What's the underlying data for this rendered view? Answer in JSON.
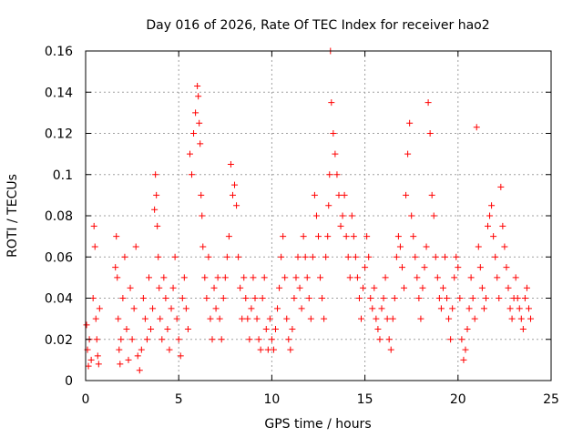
{
  "chart_data": {
    "type": "scatter",
    "title": "Day 016 of 2026, Rate Of TEC Index for receiver hao2",
    "xlabel": "GPS time / hours",
    "ylabel": "ROTI / TECUs",
    "xlim": [
      0,
      25
    ],
    "ylim": [
      0,
      0.16
    ],
    "xticks": [
      "0",
      "5",
      "10",
      "15",
      "20",
      "25"
    ],
    "yticks": [
      "0",
      "0.02",
      "0.04",
      "0.06",
      "0.08",
      "0.1",
      "0.12",
      "0.14",
      "0.16"
    ],
    "grid": true,
    "marker": "+",
    "color": "#ff0000",
    "series": [
      {
        "x": [
          0.05,
          0.1,
          0.15,
          0.2,
          0.3,
          0.4,
          0.45,
          0.5,
          0.55,
          0.6,
          0.65,
          0.7,
          0.75,
          1.6,
          1.65,
          1.7,
          1.75,
          1.8,
          1.85,
          1.9,
          2.0,
          2.1,
          2.2,
          2.3,
          2.4,
          2.5,
          2.6,
          2.7,
          2.8,
          2.9,
          3.0,
          3.1,
          3.2,
          3.3,
          3.4,
          3.5,
          3.6,
          3.7,
          3.75,
          3.8,
          3.85,
          3.9,
          3.95,
          4.0,
          4.1,
          4.2,
          4.3,
          4.4,
          4.5,
          4.6,
          4.7,
          4.8,
          4.9,
          5.0,
          5.1,
          5.2,
          5.3,
          5.4,
          5.5,
          5.6,
          5.7,
          5.8,
          5.9,
          6.0,
          6.05,
          6.1,
          6.15,
          6.2,
          6.25,
          6.3,
          6.4,
          6.5,
          6.6,
          6.7,
          6.8,
          6.9,
          7.0,
          7.1,
          7.2,
          7.3,
          7.4,
          7.5,
          7.6,
          7.7,
          7.8,
          7.9,
          8.0,
          8.1,
          8.2,
          8.3,
          8.4,
          8.5,
          8.6,
          8.7,
          8.8,
          8.9,
          9.0,
          9.1,
          9.2,
          9.3,
          9.4,
          9.5,
          9.6,
          9.7,
          9.8,
          9.9,
          10.0,
          10.1,
          10.2,
          10.3,
          10.4,
          10.5,
          10.6,
          10.7,
          10.8,
          10.9,
          11.0,
          11.1,
          11.2,
          11.3,
          11.4,
          11.5,
          11.6,
          11.7,
          11.8,
          11.9,
          12.0,
          12.1,
          12.2,
          12.3,
          12.4,
          12.5,
          12.6,
          12.7,
          12.8,
          12.9,
          13.0,
          13.05,
          13.1,
          13.15,
          13.2,
          13.3,
          13.4,
          13.5,
          13.6,
          13.7,
          13.8,
          13.9,
          14.0,
          14.1,
          14.2,
          14.3,
          14.4,
          14.5,
          14.6,
          14.7,
          14.8,
          14.9,
          15.0,
          15.1,
          15.2,
          15.3,
          15.4,
          15.5,
          15.6,
          15.7,
          15.8,
          15.9,
          16.0,
          16.1,
          16.2,
          16.3,
          16.4,
          16.5,
          16.6,
          16.7,
          16.8,
          16.9,
          17.0,
          17.1,
          17.2,
          17.3,
          17.4,
          17.5,
          17.6,
          17.7,
          17.8,
          17.9,
          18.0,
          18.1,
          18.2,
          18.3,
          18.4,
          18.5,
          18.6,
          18.7,
          18.8,
          18.9,
          19.0,
          19.1,
          19.2,
          19.3,
          19.4,
          19.5,
          19.6,
          19.7,
          19.8,
          19.9,
          20.0,
          20.1,
          20.2,
          20.3,
          20.4,
          20.5,
          20.6,
          20.7,
          20.8,
          20.9,
          21.0,
          21.1,
          21.2,
          21.3,
          21.4,
          21.5,
          21.6,
          21.7,
          21.8,
          21.9,
          22.0,
          22.1,
          22.2,
          22.3,
          22.4,
          22.5,
          22.6,
          22.7,
          22.8,
          22.9,
          23.0,
          23.1,
          23.2,
          23.3,
          23.4,
          23.5,
          23.6,
          23.7,
          23.8,
          23.9
        ],
        "y": [
          0.027,
          0.015,
          0.007,
          0.02,
          0.01,
          0.04,
          0.075,
          0.065,
          0.03,
          0.02,
          0.012,
          0.008,
          0.035,
          0.055,
          0.07,
          0.05,
          0.03,
          0.015,
          0.008,
          0.02,
          0.04,
          0.06,
          0.025,
          0.01,
          0.045,
          0.02,
          0.035,
          0.065,
          0.012,
          0.005,
          0.015,
          0.04,
          0.03,
          0.02,
          0.05,
          0.025,
          0.035,
          0.083,
          0.1,
          0.09,
          0.075,
          0.06,
          0.045,
          0.03,
          0.02,
          0.05,
          0.04,
          0.025,
          0.015,
          0.035,
          0.045,
          0.06,
          0.03,
          0.02,
          0.012,
          0.04,
          0.05,
          0.035,
          0.025,
          0.11,
          0.1,
          0.12,
          0.13,
          0.143,
          0.138,
          0.125,
          0.115,
          0.09,
          0.08,
          0.065,
          0.05,
          0.04,
          0.06,
          0.03,
          0.02,
          0.045,
          0.035,
          0.05,
          0.03,
          0.02,
          0.04,
          0.05,
          0.06,
          0.07,
          0.105,
          0.09,
          0.095,
          0.085,
          0.06,
          0.045,
          0.03,
          0.05,
          0.04,
          0.03,
          0.02,
          0.035,
          0.05,
          0.04,
          0.03,
          0.02,
          0.015,
          0.04,
          0.05,
          0.025,
          0.015,
          0.03,
          0.02,
          0.015,
          0.025,
          0.035,
          0.045,
          0.06,
          0.07,
          0.05,
          0.03,
          0.02,
          0.015,
          0.025,
          0.04,
          0.05,
          0.06,
          0.045,
          0.035,
          0.07,
          0.06,
          0.05,
          0.04,
          0.03,
          0.06,
          0.09,
          0.08,
          0.07,
          0.05,
          0.04,
          0.03,
          0.06,
          0.07,
          0.085,
          0.1,
          0.16,
          0.135,
          0.12,
          0.11,
          0.1,
          0.09,
          0.075,
          0.08,
          0.09,
          0.07,
          0.06,
          0.05,
          0.08,
          0.07,
          0.06,
          0.05,
          0.04,
          0.03,
          0.045,
          0.055,
          0.07,
          0.06,
          0.04,
          0.035,
          0.045,
          0.03,
          0.025,
          0.02,
          0.035,
          0.04,
          0.05,
          0.03,
          0.02,
          0.015,
          0.03,
          0.04,
          0.06,
          0.07,
          0.065,
          0.055,
          0.045,
          0.09,
          0.11,
          0.125,
          0.08,
          0.07,
          0.06,
          0.05,
          0.04,
          0.03,
          0.045,
          0.055,
          0.065,
          0.135,
          0.12,
          0.09,
          0.08,
          0.06,
          0.05,
          0.04,
          0.035,
          0.045,
          0.06,
          0.04,
          0.03,
          0.02,
          0.035,
          0.05,
          0.06,
          0.055,
          0.04,
          0.02,
          0.01,
          0.015,
          0.025,
          0.035,
          0.05,
          0.04,
          0.03,
          0.123,
          0.065,
          0.055,
          0.045,
          0.035,
          0.04,
          0.075,
          0.08,
          0.085,
          0.07,
          0.06,
          0.05,
          0.04,
          0.094,
          0.075,
          0.065,
          0.055,
          0.045,
          0.035,
          0.03,
          0.04,
          0.05,
          0.04,
          0.035,
          0.03,
          0.025,
          0.04,
          0.045,
          0.035,
          0.03
        ]
      }
    ]
  }
}
